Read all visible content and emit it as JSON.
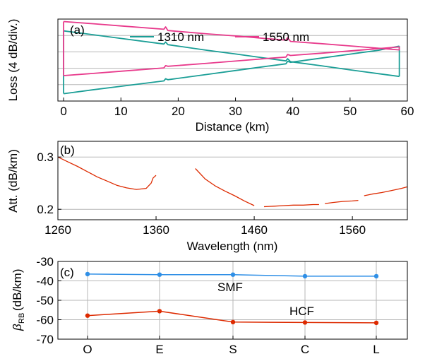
{
  "colors": {
    "teal": "#1a9e96",
    "pink": "#e83a8c",
    "red": "#dd2a00",
    "blue": "#2f8fe6",
    "grid": "#b7b7b7"
  },
  "chart_data": [
    {
      "type": "line",
      "panel_label": "(a)",
      "xlabel": "Distance (km)",
      "ylabel": "Loss (4 dB/div.)",
      "xlim": [
        -1,
        60
      ],
      "ylim": [
        0,
        5
      ],
      "x_ticks": [
        "0",
        "10",
        "20",
        "30",
        "40",
        "50",
        "60"
      ],
      "grid": true,
      "legend_placement": "top-center",
      "series": [
        {
          "name": "1310 nm",
          "color": "#1a9e96",
          "traces": [
            {
              "x": [
                0,
                5,
                10,
                17.5,
                17.8,
                18.2,
                25,
                30,
                35,
                38.8,
                39.1,
                39.6,
                45,
                50,
                55,
                58.6
              ],
              "y": [
                4.28,
                4.05,
                3.82,
                3.48,
                3.6,
                3.44,
                3.1,
                2.87,
                2.63,
                2.45,
                2.58,
                2.4,
                2.15,
                1.9,
                1.67,
                1.5
              ]
            },
            {
              "x": [
                0,
                5,
                10,
                17.5,
                17.8,
                18.2,
                25,
                30,
                35,
                38.8,
                39.1,
                39.6,
                45,
                50,
                55,
                58.6
              ],
              "y": [
                0.45,
                0.68,
                0.9,
                1.23,
                1.36,
                1.3,
                1.62,
                1.86,
                2.1,
                2.27,
                2.42,
                2.36,
                2.62,
                2.86,
                3.1,
                3.35
              ]
            }
          ]
        },
        {
          "name": "1550 nm",
          "color": "#e83a8c",
          "traces": [
            {
              "x": [
                0,
                5,
                10,
                17.5,
                17.8,
                18.2,
                25,
                30,
                35,
                38.8,
                39.1,
                39.6,
                45,
                50,
                55,
                58.6
              ],
              "y": [
                4.85,
                4.72,
                4.58,
                4.38,
                4.52,
                4.3,
                4.1,
                3.97,
                3.82,
                3.72,
                3.86,
                3.64,
                3.5,
                3.36,
                3.22,
                3.12
              ]
            },
            {
              "x": [
                0,
                5,
                10,
                17.5,
                17.8,
                18.2,
                25,
                30,
                35,
                38.8,
                39.1,
                39.6,
                45,
                50,
                55,
                58.6
              ],
              "y": [
                1.55,
                1.68,
                1.82,
                2.02,
                2.16,
                2.12,
                2.3,
                2.44,
                2.58,
                2.68,
                2.84,
                2.78,
                2.92,
                3.06,
                3.2,
                3.3
              ]
            }
          ]
        }
      ]
    },
    {
      "type": "line",
      "panel_label": "(b)",
      "xlabel": "Wavelength (nm)",
      "ylabel": "Att. (dB/km)",
      "xlim": [
        1260,
        1616
      ],
      "ylim": [
        0.18,
        0.33
      ],
      "x_ticks": [
        "1260",
        "1360",
        "1460",
        "1560"
      ],
      "y_ticks": [
        "0.2",
        "0.3"
      ],
      "grid": true,
      "series": [
        {
          "color": "#dd2a00",
          "segments": [
            {
              "x": [
                1260,
                1270,
                1280,
                1290,
                1300,
                1310,
                1320,
                1330,
                1340,
                1350,
                1355,
                1357,
                1360
              ],
              "y": [
                0.3,
                0.291,
                0.282,
                0.272,
                0.262,
                0.254,
                0.246,
                0.241,
                0.238,
                0.24,
                0.25,
                0.26,
                0.265
              ]
            },
            {
              "x": [
                1400,
                1410,
                1420,
                1430,
                1440,
                1450,
                1460
              ],
              "y": [
                0.278,
                0.258,
                0.245,
                0.235,
                0.226,
                0.216,
                0.207
              ]
            },
            {
              "x": [
                1470,
                1480,
                1490,
                1500,
                1510,
                1520,
                1526
              ],
              "y": [
                0.205,
                0.206,
                0.207,
                0.208,
                0.208,
                0.209,
                0.209
              ]
            },
            {
              "x": [
                1532,
                1540,
                1550,
                1560,
                1566
              ],
              "y": [
                0.211,
                0.213,
                0.215,
                0.216,
                0.217
              ]
            },
            {
              "x": [
                1572,
                1580,
                1590,
                1600,
                1610,
                1616
              ],
              "y": [
                0.226,
                0.229,
                0.232,
                0.236,
                0.24,
                0.243
              ]
            }
          ]
        }
      ]
    },
    {
      "type": "line",
      "panel_label": "(c)",
      "ylabel": "βRB (dB/km)",
      "categories": [
        "O",
        "E",
        "S",
        "C",
        "L"
      ],
      "ylim": [
        -70,
        -30
      ],
      "y_ticks": [
        "-30",
        "-40",
        "-50",
        "-60",
        "-70"
      ],
      "grid": true,
      "series": [
        {
          "name": "SMF",
          "color": "#2f8fe6",
          "values": [
            -36.5,
            -36.8,
            -36.8,
            -37.6,
            -37.6
          ]
        },
        {
          "name": "HCF",
          "color": "#dd2a00",
          "values": [
            -57.9,
            -55.6,
            -61.2,
            -61.4,
            -61.6
          ]
        }
      ]
    }
  ]
}
